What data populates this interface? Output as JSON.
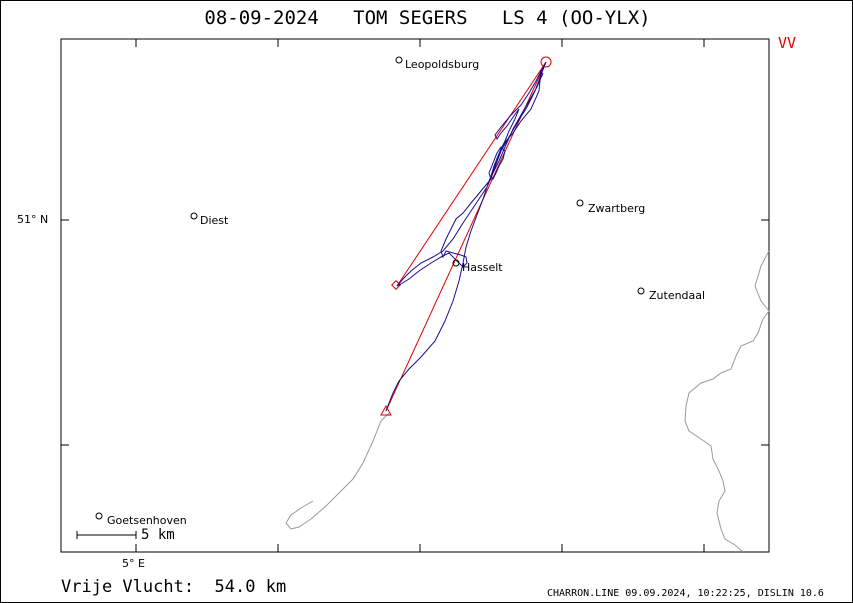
{
  "header": {
    "date": "08-09-2024",
    "pilot": "TOM SEGERS",
    "glider": "LS 4 (OO-YLX)",
    "badge": "VV"
  },
  "axes": {
    "lat_label": "51° N",
    "lon_label": "5° E"
  },
  "scale": {
    "label": "5 km"
  },
  "places": [
    {
      "name": "Leopoldsburg"
    },
    {
      "name": "Diest"
    },
    {
      "name": "Zwartberg"
    },
    {
      "name": "Hasselt"
    },
    {
      "name": "Zutendaal"
    },
    {
      "name": "Goetsenhoven"
    }
  ],
  "footer": {
    "flight_label": "Vrije Vlucht:",
    "distance": "54.0 km",
    "credit": "CHARRON.LINE 09.09.2024, 10:22:25, DISLIN 10.6"
  },
  "colors": {
    "track": "#1a0d8a",
    "task": "#e00000",
    "border": "#9a9a9a",
    "frame": "#000000"
  }
}
